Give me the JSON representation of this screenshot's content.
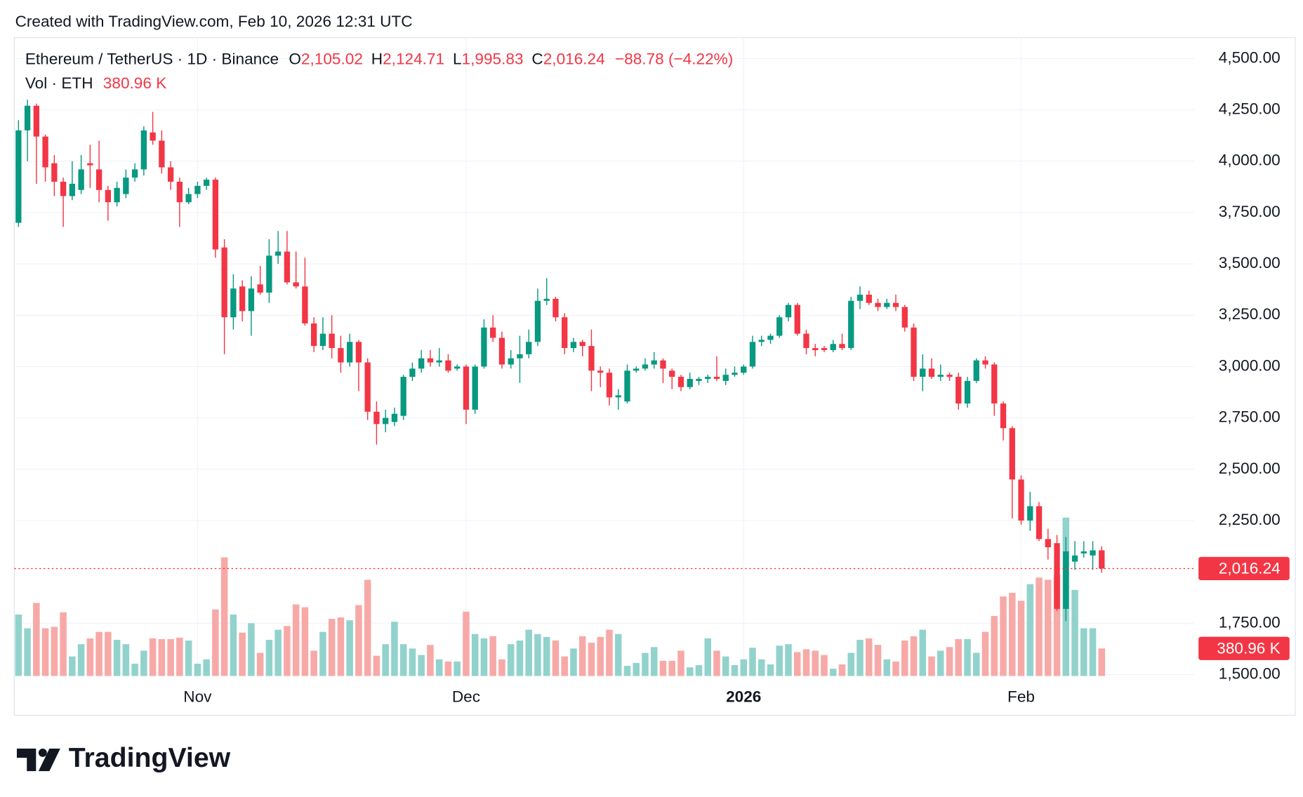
{
  "caption": "Created with TradingView.com, Feb 10, 2026 12:31 UTC",
  "brand": "TradingView",
  "chart_data": {
    "type": "candlestick",
    "title": "Ethereum / TetherUS · 1D · Binance",
    "ohlc_legend": [
      {
        "key": "O",
        "label": "2,105.02"
      },
      {
        "key": "H",
        "label": "2,124.71"
      },
      {
        "key": "L",
        "label": "1,995.83"
      },
      {
        "key": "C",
        "label": "2,016.24"
      }
    ],
    "change_label": "−88.78 (−4.22%)",
    "volume_title": "Vol · ETH",
    "volume_label": "380.96 K",
    "last_price_label": "2,016.24",
    "up_color": "#089981",
    "down_color": "#f23645",
    "volume_up_color": "#92d2cc",
    "volume_down_color": "#f7a9a7",
    "grid": true,
    "ylim": [
      1485,
      4598
    ],
    "yticks": [
      {
        "value": 4500,
        "label": "4,500.00"
      },
      {
        "value": 4250,
        "label": "4,250.00"
      },
      {
        "value": 4000,
        "label": "4,000.00"
      },
      {
        "value": 3750,
        "label": "3,750.00"
      },
      {
        "value": 3500,
        "label": "3,500.00"
      },
      {
        "value": 3250,
        "label": "3,250.00"
      },
      {
        "value": 3000,
        "label": "3,000.00"
      },
      {
        "value": 2750,
        "label": "2,750.00"
      },
      {
        "value": 2500,
        "label": "2,500.00"
      },
      {
        "value": 2250,
        "label": "2,250.00"
      },
      {
        "value": 1750,
        "label": "1,750.00"
      },
      {
        "value": 1500,
        "label": "1,500.00"
      }
    ],
    "volume_lim": [
      0,
      2400
    ],
    "categories": [
      null,
      null,
      null,
      null,
      null,
      null,
      null,
      null,
      null,
      null,
      null,
      null,
      null,
      null,
      null,
      null,
      null,
      null,
      null,
      null,
      "Nov",
      null,
      null,
      null,
      null,
      null,
      null,
      null,
      null,
      null,
      null,
      null,
      null,
      null,
      null,
      null,
      null,
      null,
      null,
      null,
      null,
      null,
      null,
      null,
      null,
      null,
      null,
      null,
      null,
      null,
      "Dec",
      null,
      null,
      null,
      null,
      null,
      null,
      null,
      null,
      null,
      null,
      null,
      null,
      null,
      null,
      null,
      null,
      null,
      null,
      null,
      null,
      null,
      null,
      null,
      null,
      null,
      null,
      null,
      null,
      null,
      null,
      "2026",
      null,
      null,
      null,
      null,
      null,
      null,
      null,
      null,
      null,
      null,
      null,
      null,
      null,
      null,
      null,
      null,
      null,
      null,
      null,
      null,
      null,
      null,
      null,
      null,
      null,
      null,
      null,
      null,
      null,
      null,
      "Feb",
      null,
      null,
      null,
      null,
      null,
      null,
      null,
      null,
      null
    ],
    "open": [
      3700,
      4150,
      4270,
      4120,
      3990,
      3900,
      3830,
      3860,
      3990,
      3960,
      3860,
      3800,
      3840,
      3920,
      3960,
      4140,
      4100,
      3970,
      3900,
      3800,
      3840,
      3880,
      3910,
      3580,
      3240,
      3390,
      3270,
      3400,
      3360,
      3540,
      3560,
      3410,
      3390,
      3210,
      3100,
      3160,
      3090,
      3020,
      3120,
      3020,
      2780,
      2720,
      2730,
      2760,
      2950,
      2990,
      3040,
      3020,
      3030,
      2990,
      3000,
      2790,
      3000,
      3190,
      3140,
      3010,
      3040,
      3060,
      3120,
      3320,
      3330,
      3240,
      3090,
      3120,
      3100,
      2980,
      2970,
      2850,
      2830,
      2980,
      2990,
      3010,
      3030,
      2980,
      2950,
      2900,
      2930,
      2940,
      2950,
      2930,
      2960,
      2970,
      3000,
      3120,
      3130,
      3150,
      3240,
      3300,
      3160,
      3090,
      3090,
      3080,
      3110,
      3090,
      3320,
      3350,
      3310,
      3290,
      3310,
      3290,
      3190,
      2950,
      2990,
      2950,
      2960,
      2950,
      2820,
      2930,
      3030,
      3010,
      2820,
      2700,
      2450,
      2250,
      2320,
      2160,
      2140,
      1820,
      2050,
      2090,
      2080,
      2105.02
    ],
    "high": [
      4200,
      4300,
      4280,
      4130,
      4030,
      3920,
      4000,
      4030,
      4080,
      4100,
      3880,
      3900,
      3960,
      3990,
      4170,
      4240,
      4150,
      4000,
      3920,
      3870,
      3900,
      3920,
      3920,
      3620,
      3450,
      3420,
      3440,
      3490,
      3620,
      3660,
      3660,
      3560,
      3530,
      3240,
      3240,
      3250,
      3150,
      3160,
      3130,
      3040,
      2830,
      2790,
      2800,
      2960,
      3020,
      3080,
      3080,
      3090,
      3060,
      3010,
      3010,
      3010,
      3230,
      3250,
      3170,
      3080,
      3150,
      3180,
      3380,
      3430,
      3340,
      3260,
      3140,
      3130,
      3180,
      3000,
      2990,
      2890,
      3010,
      3000,
      3040,
      3070,
      3040,
      2990,
      2960,
      2970,
      2950,
      2960,
      3050,
      2990,
      3000,
      3010,
      3150,
      3150,
      3160,
      3250,
      3310,
      3310,
      3180,
      3110,
      3100,
      3130,
      3160,
      3340,
      3390,
      3370,
      3330,
      3330,
      3350,
      3300,
      3210,
      3060,
      3040,
      3010,
      2970,
      2970,
      2950,
      3040,
      3050,
      3020,
      2830,
      2710,
      2470,
      2390,
      2340,
      2210,
      2180,
      2170,
      2150,
      2150,
      2150,
      2124.71
    ],
    "low": [
      3680,
      4000,
      3890,
      3900,
      3830,
      3680,
      3810,
      3840,
      3870,
      3800,
      3710,
      3780,
      3820,
      3900,
      3930,
      4080,
      3940,
      3860,
      3680,
      3790,
      3820,
      3860,
      3530,
      3060,
      3180,
      3220,
      3150,
      3350,
      3310,
      3500,
      3400,
      3380,
      3200,
      3070,
      3080,
      3040,
      2970,
      3000,
      2880,
      2740,
      2620,
      2680,
      2710,
      2740,
      2930,
      2970,
      3000,
      3000,
      2970,
      2980,
      2720,
      2770,
      2990,
      3120,
      2990,
      2990,
      2920,
      3040,
      3100,
      3300,
      3220,
      3060,
      3070,
      3050,
      2880,
      2900,
      2810,
      2790,
      2820,
      2970,
      2980,
      2990,
      2920,
      2890,
      2880,
      2890,
      2910,
      2920,
      2930,
      2910,
      2950,
      2960,
      2990,
      3100,
      3110,
      3140,
      3220,
      3150,
      3060,
      3050,
      3070,
      3070,
      3080,
      3080,
      3280,
      3300,
      3270,
      3280,
      3270,
      3170,
      2930,
      2880,
      2940,
      2930,
      2930,
      2790,
      2800,
      2920,
      2990,
      2760,
      2640,
      2260,
      2230,
      2200,
      2150,
      2060,
      1810,
      1760,
      2010,
      2070,
      2010,
      1995.83
    ],
    "close": [
      4150,
      4270,
      4120,
      3970,
      3900,
      3830,
      3890,
      3960,
      3980,
      3860,
      3800,
      3870,
      3920,
      3960,
      4150,
      4100,
      3970,
      3900,
      3800,
      3840,
      3880,
      3910,
      3570,
      3240,
      3380,
      3270,
      3380,
      3360,
      3540,
      3560,
      3410,
      3390,
      3210,
      3100,
      3160,
      3090,
      3020,
      3120,
      3020,
      2780,
      2720,
      2750,
      2770,
      2950,
      2990,
      3040,
      3020,
      3030,
      2980,
      3000,
      2790,
      3000,
      3190,
      3140,
      3010,
      3040,
      3060,
      3120,
      3320,
      3330,
      3240,
      3090,
      3120,
      3100,
      2980,
      2970,
      2850,
      2860,
      2980,
      2990,
      3010,
      3030,
      2990,
      2950,
      2900,
      2940,
      2940,
      2950,
      2940,
      2960,
      2970,
      3000,
      3120,
      3130,
      3150,
      3240,
      3300,
      3160,
      3090,
      3080,
      3080,
      3110,
      3090,
      3320,
      3350,
      3310,
      3290,
      3310,
      3290,
      3190,
      2950,
      2990,
      2950,
      2960,
      2950,
      2820,
      2930,
      3030,
      3010,
      2820,
      2700,
      2450,
      2250,
      2320,
      2160,
      2120,
      1820,
      2100,
      2080,
      2100,
      2105.02,
      2016.24
    ],
    "volume": [
      850,
      660,
      1010,
      660,
      680,
      880,
      270,
      440,
      520,
      610,
      610,
      500,
      440,
      170,
      350,
      520,
      510,
      510,
      530,
      490,
      170,
      230,
      920,
      1640,
      850,
      600,
      730,
      320,
      500,
      640,
      690,
      990,
      950,
      350,
      610,
      790,
      810,
      770,
      980,
      1330,
      280,
      440,
      750,
      440,
      380,
      290,
      430,
      230,
      200,
      200,
      890,
      580,
      520,
      550,
      230,
      440,
      490,
      640,
      580,
      540,
      490,
      270,
      380,
      550,
      460,
      540,
      640,
      580,
      140,
      180,
      320,
      400,
      210,
      210,
      350,
      120,
      150,
      520,
      350,
      270,
      150,
      230,
      390,
      230,
      160,
      420,
      440,
      330,
      370,
      350,
      290,
      100,
      160,
      320,
      500,
      520,
      430,
      230,
      200,
      490,
      550,
      640,
      270,
      350,
      400,
      510,
      510,
      320,
      610,
      830,
      1100,
      1150,
      1040,
      1270,
      1360,
      1330,
      1400,
      2190,
      1190,
      660,
      660,
      380.96
    ]
  }
}
